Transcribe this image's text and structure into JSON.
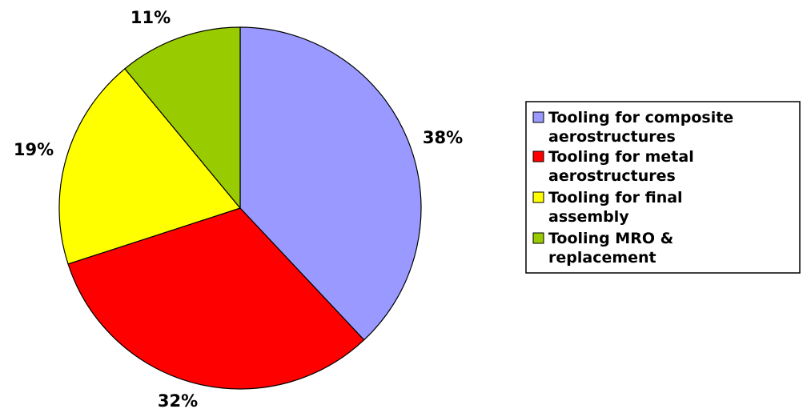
{
  "chart_data": {
    "type": "pie",
    "title": "",
    "slices": [
      {
        "label": "Tooling for composite aerostructures",
        "value": 38,
        "display": "38%",
        "color": "#9999ff"
      },
      {
        "label": "Tooling for metal aerostructures",
        "value": 32,
        "display": "32%",
        "color": "#ff0000"
      },
      {
        "label": "Tooling for final assembly",
        "value": 19,
        "display": "19%",
        "color": "#ffff00"
      },
      {
        "label": "Tooling MRO & replacement",
        "value": 11,
        "display": "11%",
        "color": "#99cc00"
      }
    ],
    "legend": {
      "placement": "right",
      "entries": [
        {
          "lines": [
            "Tooling for composite",
            "aerostructures"
          ],
          "color": "#9999ff"
        },
        {
          "lines": [
            "Tooling for metal",
            "aerostructures"
          ],
          "color": "#ff0000"
        },
        {
          "lines": [
            "Tooling for final",
            "assembly"
          ],
          "color": "#ffff00"
        },
        {
          "lines": [
            "Tooling MRO &",
            "replacement"
          ],
          "color": "#99cc00"
        }
      ]
    },
    "start_angle": "12 o'clock",
    "direction": "clockwise"
  }
}
